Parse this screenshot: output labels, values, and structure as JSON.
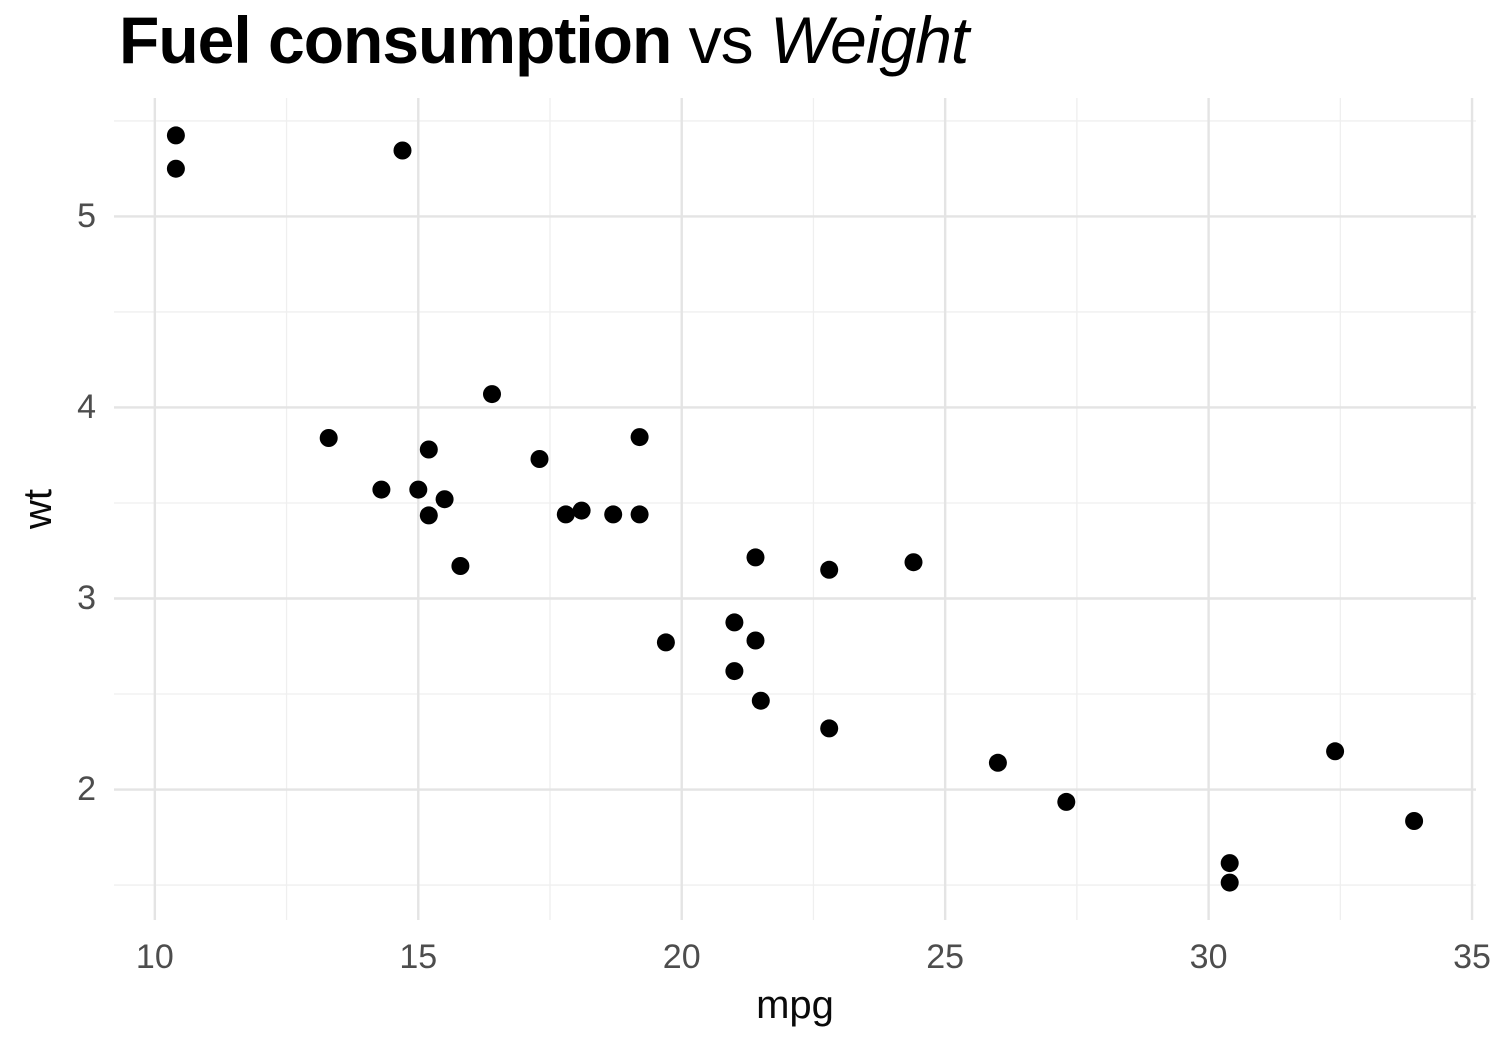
{
  "title": {
    "bold": "Fuel consumption",
    "plain": " vs ",
    "italic": "Weight"
  },
  "chart_data": {
    "type": "scatter",
    "title": "Fuel consumption vs Weight",
    "xlabel": "mpg",
    "ylabel": "wt",
    "xlim": [
      9.225,
      35.075
    ],
    "ylim": [
      1.317,
      5.62
    ],
    "x_major_ticks": [
      10,
      15,
      20,
      25,
      30,
      35
    ],
    "x_minor_ticks": [
      12.5,
      17.5,
      22.5,
      27.5,
      32.5
    ],
    "y_major_ticks": [
      2,
      3,
      4,
      5
    ],
    "y_minor_ticks": [
      1.5,
      2.5,
      3.5,
      4.5,
      5.5
    ],
    "grid": true,
    "legend": false,
    "points": [
      [
        21.0,
        2.62
      ],
      [
        21.0,
        2.875
      ],
      [
        22.8,
        2.32
      ],
      [
        21.4,
        3.215
      ],
      [
        18.7,
        3.44
      ],
      [
        18.1,
        3.46
      ],
      [
        14.3,
        3.57
      ],
      [
        24.4,
        3.19
      ],
      [
        22.8,
        3.15
      ],
      [
        19.2,
        3.44
      ],
      [
        17.8,
        3.44
      ],
      [
        16.4,
        4.07
      ],
      [
        17.3,
        3.73
      ],
      [
        15.2,
        3.78
      ],
      [
        10.4,
        5.25
      ],
      [
        10.4,
        5.424
      ],
      [
        14.7,
        5.345
      ],
      [
        32.4,
        2.2
      ],
      [
        30.4,
        1.615
      ],
      [
        33.9,
        1.835
      ],
      [
        21.5,
        2.465
      ],
      [
        15.5,
        3.52
      ],
      [
        15.2,
        3.435
      ],
      [
        13.3,
        3.84
      ],
      [
        19.2,
        3.845
      ],
      [
        27.3,
        1.935
      ],
      [
        26.0,
        2.14
      ],
      [
        30.4,
        1.513
      ],
      [
        15.8,
        3.17
      ],
      [
        19.7,
        2.77
      ],
      [
        15.0,
        3.57
      ],
      [
        21.4,
        2.78
      ]
    ],
    "point_radius_px": 9,
    "colors": {
      "point": "#000000",
      "grid_major": "#E4E4E4",
      "grid_minor": "#EFEFEF",
      "tick_label": "#4D4D4D",
      "axis_title": "#0A0A0A",
      "title": "#000000",
      "background": "#FFFFFF"
    }
  }
}
